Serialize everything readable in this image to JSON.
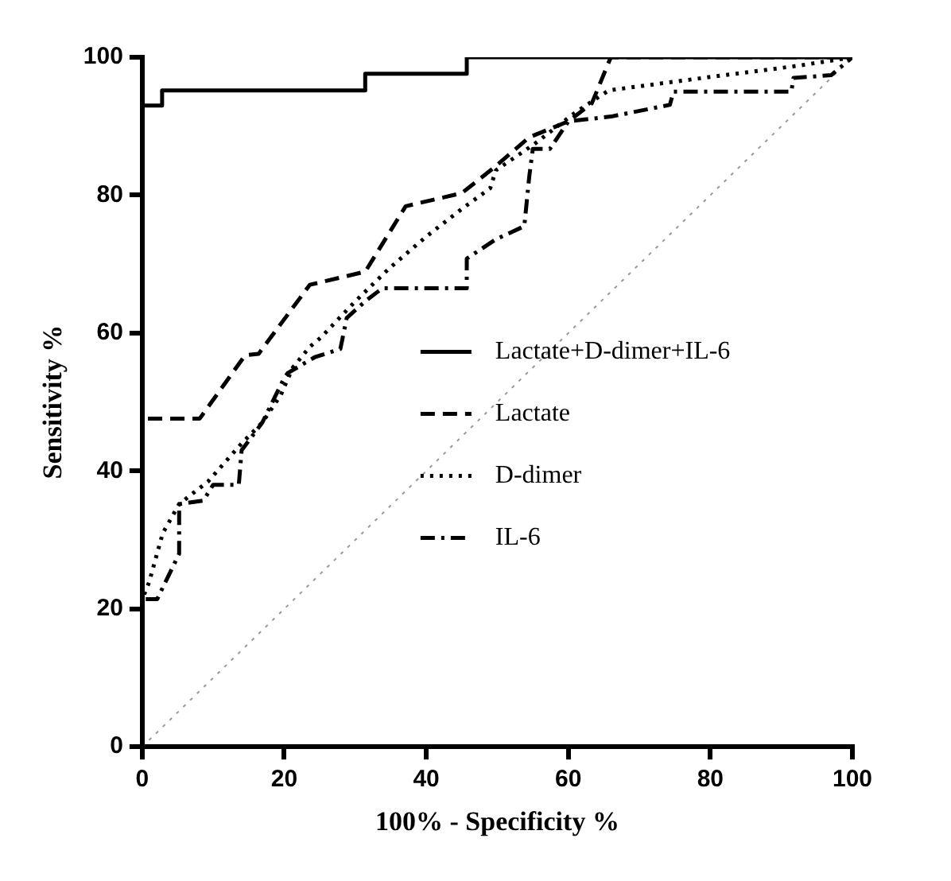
{
  "chart_data": {
    "type": "line",
    "xlabel": "100% - Specificity %",
    "ylabel": "Sensitivity %",
    "xlim": [
      0,
      100
    ],
    "ylim": [
      0,
      100
    ],
    "xticks": [
      0,
      20,
      40,
      60,
      80,
      100
    ],
    "yticks": [
      0,
      20,
      40,
      60,
      80,
      100
    ],
    "grid": false,
    "legend": "right",
    "marker": "none",
    "series": [
      {
        "name": "Lactate+D-dimer+IL-6",
        "color": "#000000",
        "line_style": "solid",
        "x": [
          0,
          0,
          2.8,
          2.8,
          31.4,
          31.4,
          45.7,
          45.7,
          100
        ],
        "values": [
          0,
          93,
          93,
          95.2,
          95.2,
          97.6,
          97.6,
          100,
          100
        ]
      },
      {
        "name": "Lactate",
        "color": "#000000",
        "line_style": "dashed",
        "x": [
          0,
          0,
          8.1,
          14.5,
          16.4,
          23.6,
          31.4,
          37.1,
          45,
          49.3,
          54.5,
          60,
          63.3,
          65.7,
          66,
          100
        ],
        "values": [
          0,
          47.6,
          47.6,
          56.8,
          57,
          67,
          68.9,
          78.4,
          80.3,
          83.8,
          88.4,
          90.7,
          93.3,
          99.3,
          100,
          100
        ]
      },
      {
        "name": "D-dimer",
        "color": "#000000",
        "line_style": "dotted",
        "x": [
          0,
          0,
          0.95,
          2.9,
          5.2,
          9.3,
          14,
          16.9,
          19.5,
          21.2,
          23.6,
          25.2,
          30,
          34.8,
          40,
          45,
          49,
          49.8,
          55.2,
          61,
          65.7,
          76.7,
          92.6,
          100
        ],
        "values": [
          0,
          21.4,
          23.8,
          31,
          35.2,
          38.5,
          44,
          47,
          51,
          55,
          58,
          59.4,
          64.6,
          69.4,
          74,
          78,
          81,
          83.6,
          87.4,
          92,
          95.2,
          96.7,
          98.8,
          100
        ]
      },
      {
        "name": "IL-6",
        "color": "#000000",
        "line_style": "dashdot",
        "x": [
          0,
          0,
          2.1,
          5.2,
          5.2,
          8.6,
          10,
          13.6,
          14,
          16.9,
          20,
          20.5,
          24.3,
          27.9,
          28.8,
          31.4,
          33.8,
          45.7,
          45.7,
          49.8,
          53.8,
          54.5,
          55,
          57.4,
          60,
          66,
          74.3,
          74.8,
          91.4,
          91.7,
          97,
          100
        ],
        "values": [
          0,
          21.4,
          21.4,
          28,
          35.2,
          35.7,
          38,
          38,
          43,
          47,
          53.5,
          54.2,
          56.5,
          57.7,
          62.2,
          64.6,
          66.5,
          66.5,
          70.8,
          73.6,
          75.5,
          82.7,
          86.7,
          86.7,
          90.7,
          91.4,
          93.1,
          95,
          95,
          97,
          97.4,
          100
        ]
      },
      {
        "color": "#999999",
        "line_style": "dotted",
        "x": [
          0,
          100
        ],
        "values": [
          0,
          100
        ]
      }
    ]
  }
}
